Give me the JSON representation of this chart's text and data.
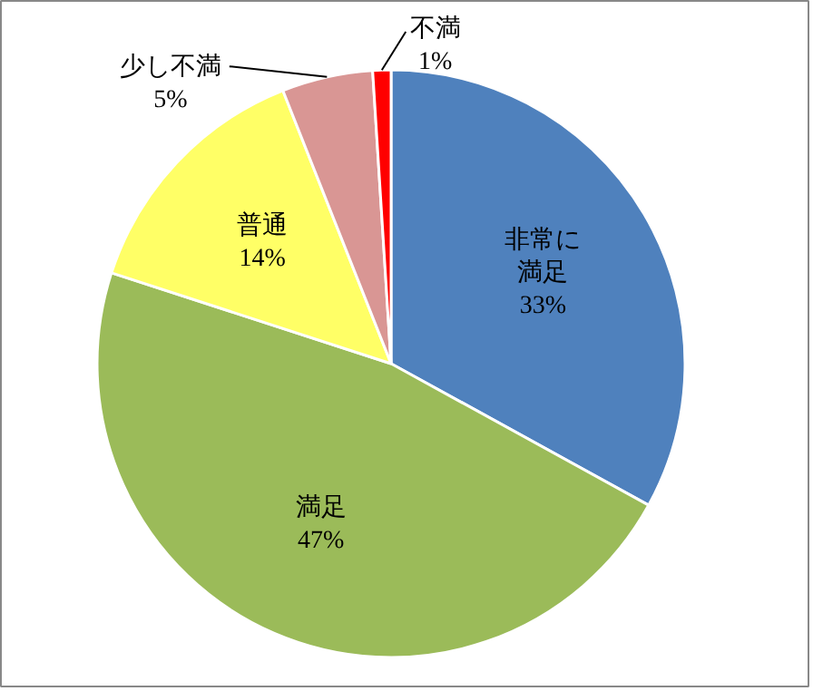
{
  "chart_data": {
    "type": "pie",
    "categories": [
      "非常に満足",
      "満足",
      "普通",
      "少し不満",
      "不満"
    ],
    "values": [
      33,
      47,
      14,
      5,
      1
    ],
    "value_labels": [
      "33%",
      "47%",
      "14%",
      "5%",
      "1%"
    ],
    "colors": [
      "#4f81bd",
      "#9bbb59",
      "#ffff66",
      "#d99694",
      "#ff0000"
    ]
  }
}
